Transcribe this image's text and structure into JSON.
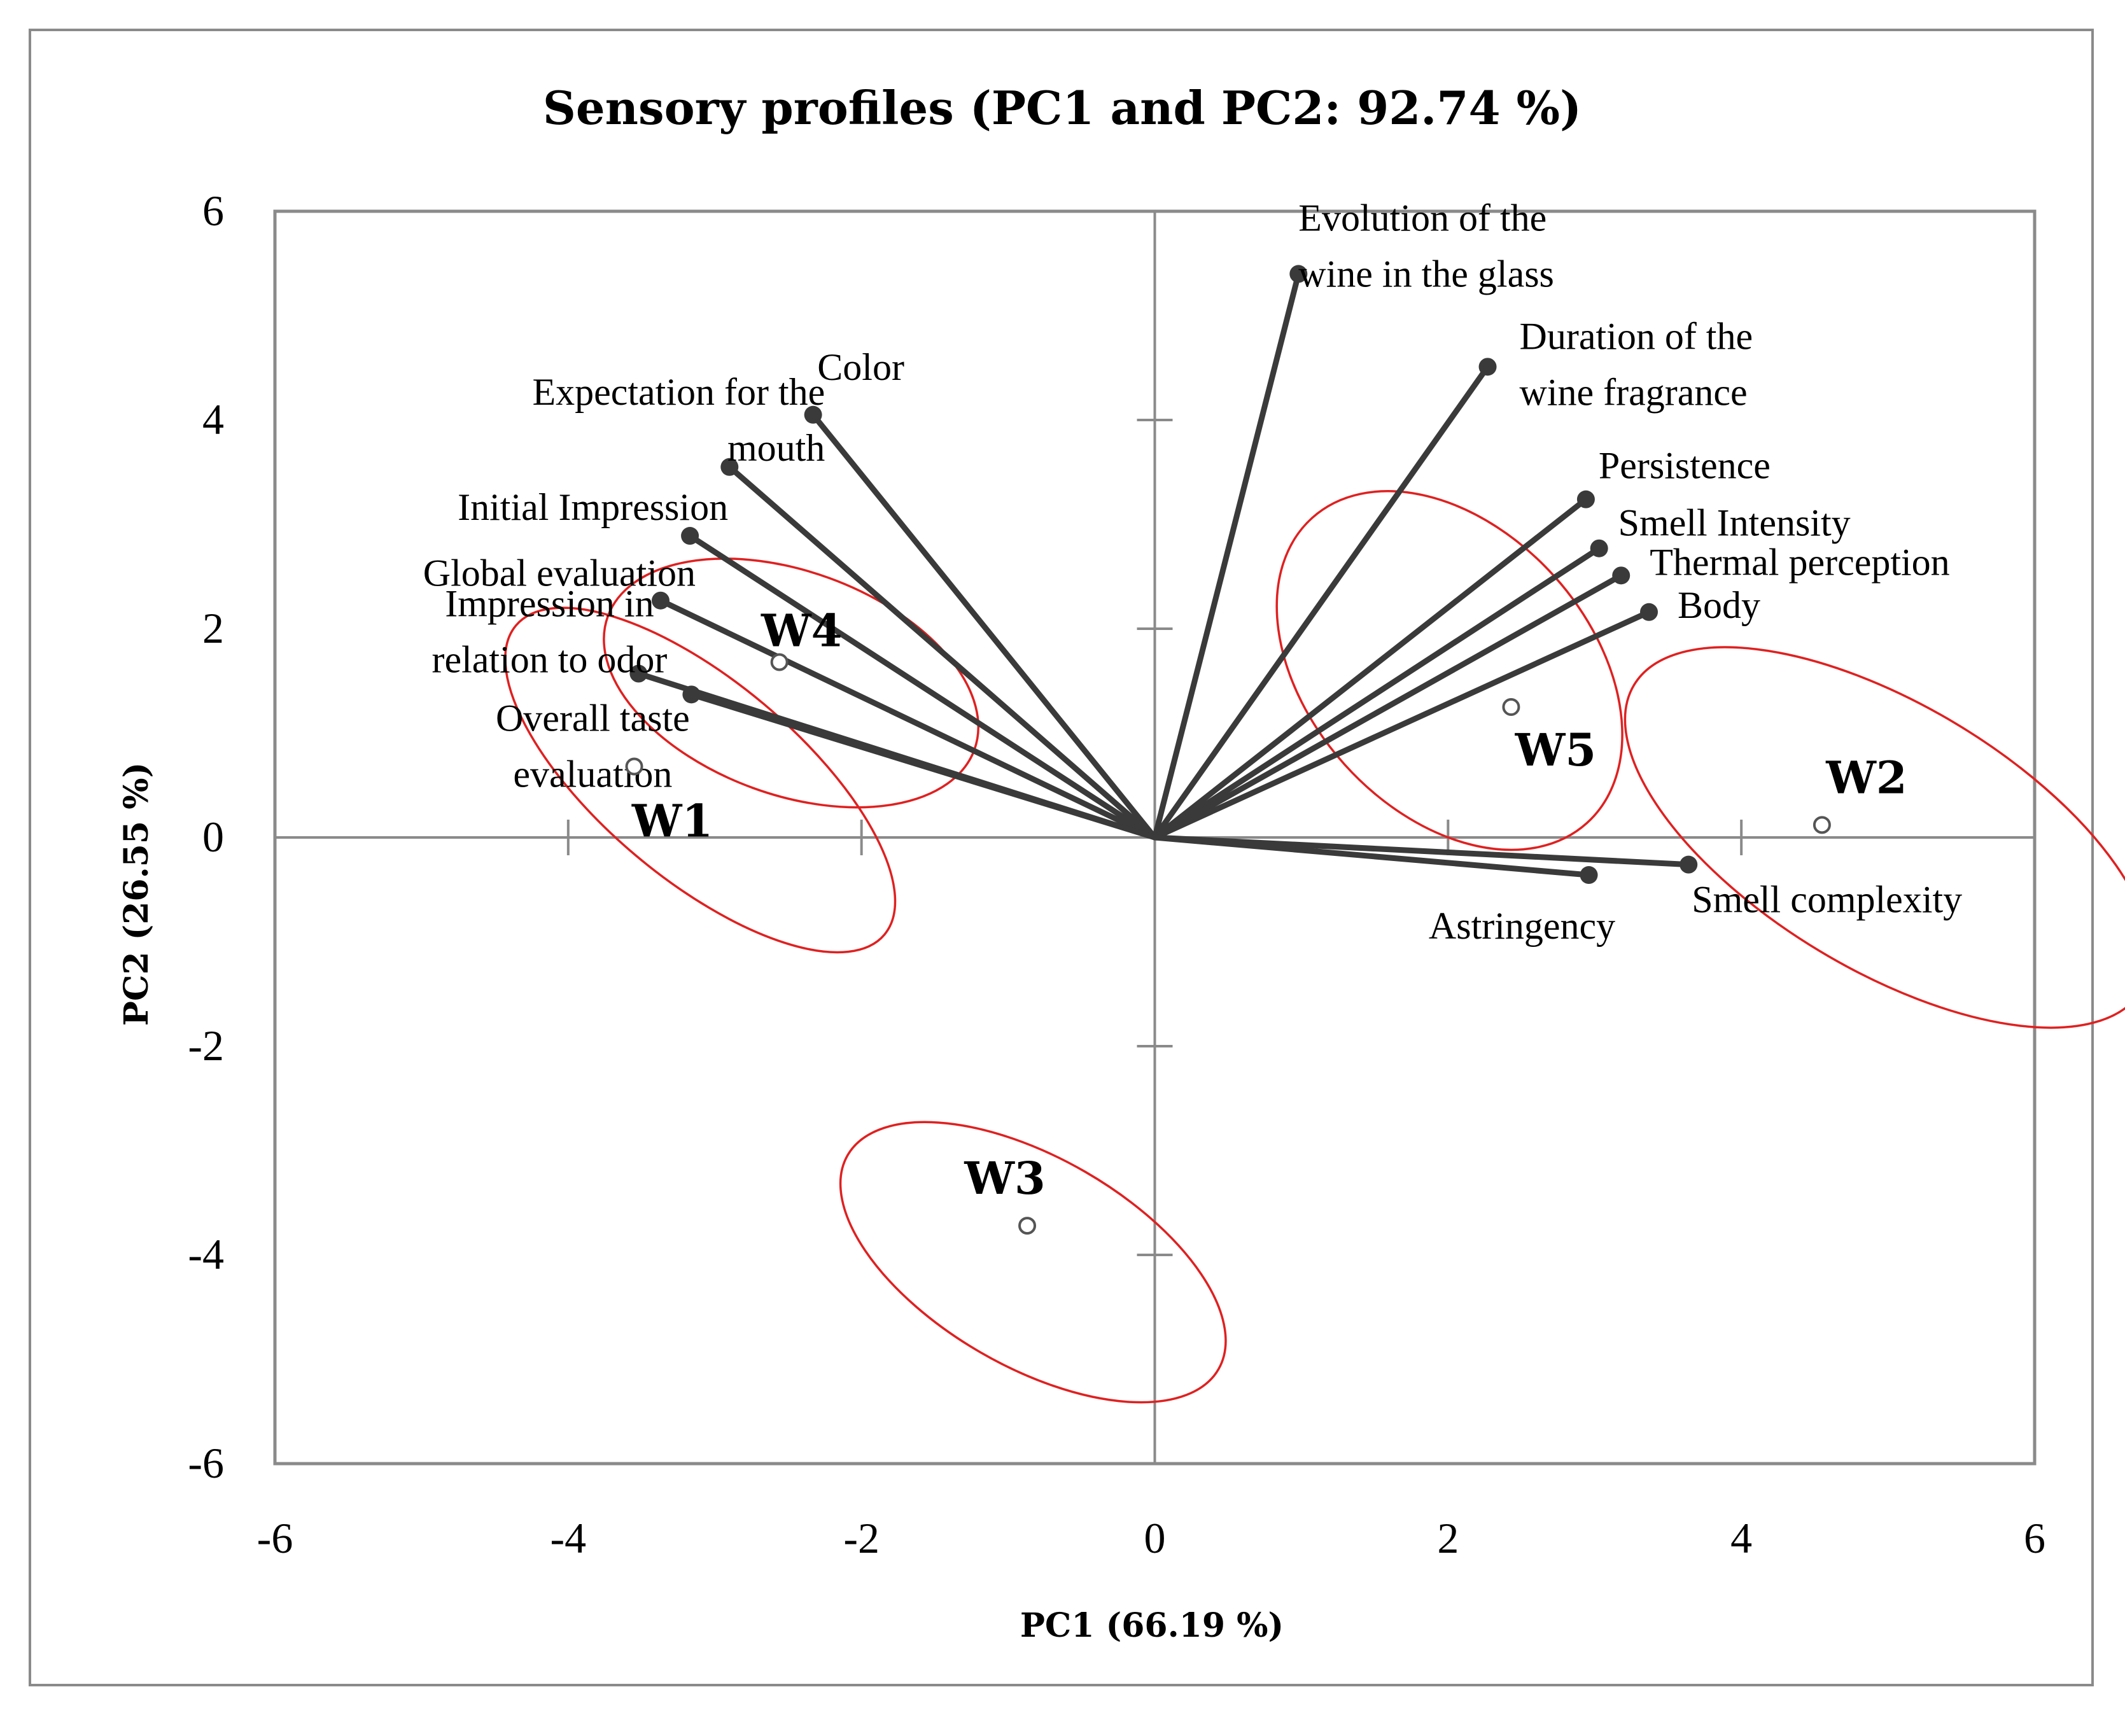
{
  "chart_data": {
    "type": "scatter",
    "title": "Sensory profiles (PC1 and PC2: 92.74 %)",
    "xlabel": "PC1 (66.19 %)",
    "ylabel": "PC2 (26.55 %)",
    "xlim": [
      -6,
      6
    ],
    "ylim": [
      -6,
      6
    ],
    "xticks": [
      -6,
      -4,
      -2,
      0,
      2,
      4,
      6
    ],
    "yticks": [
      6,
      4,
      2,
      0,
      -2,
      -4,
      -6
    ],
    "grid": false,
    "colors": {
      "vectors": "#3a3a3a",
      "ellipses": "#e02020",
      "axes": "#8a8a8a"
    },
    "variables": [
      {
        "name": "Color",
        "label_lines": [
          "Color"
        ],
        "x": -2.33,
        "y": 4.05
      },
      {
        "name": "Expectation for the mouth",
        "label_lines": [
          "Expectation for the",
          "mouth"
        ],
        "x": -2.9,
        "y": 3.55
      },
      {
        "name": "Initial Impression",
        "label_lines": [
          "Initial Impression"
        ],
        "x": -3.17,
        "y": 2.89
      },
      {
        "name": "Global evaluation",
        "label_lines": [
          "Global evaluation"
        ],
        "x": -3.37,
        "y": 2.27
      },
      {
        "name": "Impression in relation to odor",
        "label_lines": [
          "Impression in",
          "relation to odor"
        ],
        "x": -3.52,
        "y": 1.57
      },
      {
        "name": "Overall taste evaluation",
        "label_lines": [
          "Overall taste",
          "evaluation"
        ],
        "x": -3.16,
        "y": 1.37
      },
      {
        "name": "Evolution of the wine in the glass",
        "label_lines": [
          "Evolution of the",
          "wine in the glass"
        ],
        "x": 0.98,
        "y": 5.4
      },
      {
        "name": "Duration of the wine fragrance",
        "label_lines": [
          "Duration of the",
          "wine fragrance"
        ],
        "x": 2.27,
        "y": 4.51
      },
      {
        "name": "Persistence",
        "label_lines": [
          "Persistence"
        ],
        "x": 2.94,
        "y": 3.24
      },
      {
        "name": "Smell Intensity",
        "label_lines": [
          "Smell Intensity"
        ],
        "x": 3.03,
        "y": 2.77
      },
      {
        "name": "Thermal perception",
        "label_lines": [
          "Thermal perception"
        ],
        "x": 3.18,
        "y": 2.51
      },
      {
        "name": "Body",
        "label_lines": [
          "Body"
        ],
        "x": 3.37,
        "y": 2.16
      },
      {
        "name": "Smell complexity",
        "label_lines": [
          "Smell complexity"
        ],
        "x": 3.64,
        "y": -0.26
      },
      {
        "name": "Astringency",
        "label_lines": [
          "Astringency"
        ],
        "x": 2.96,
        "y": -0.36
      }
    ],
    "observations": [
      {
        "name": "W1",
        "x": -3.55,
        "y": 0.68
      },
      {
        "name": "W2",
        "x": 4.55,
        "y": 0.12
      },
      {
        "name": "W3",
        "x": -0.87,
        "y": -3.72
      },
      {
        "name": "W4",
        "x": -2.56,
        "y": 1.68
      },
      {
        "name": "W5",
        "x": 2.43,
        "y": 1.25
      }
    ],
    "ellipses": [
      {
        "group": "W1",
        "cx": -3.1,
        "cy": 0.55,
        "rx": 1.64,
        "ry": 0.95,
        "rotation_deg": 40
      },
      {
        "group": "W4",
        "cx": -2.48,
        "cy": 1.48,
        "rx": 1.33,
        "ry": 1.07,
        "rotation_deg": 20
      },
      {
        "group": "W2",
        "cx": 5.0,
        "cy": 0.0,
        "rx": 2.02,
        "ry": 1.27,
        "rotation_deg": 31
      },
      {
        "group": "W5",
        "cx": 2.01,
        "cy": 1.6,
        "rx": 1.4,
        "ry": 1.35,
        "rotation_deg": 48
      },
      {
        "group": "W3",
        "cx": -0.83,
        "cy": -4.07,
        "rx": 1.46,
        "ry": 1.0,
        "rotation_deg": 30
      }
    ]
  }
}
